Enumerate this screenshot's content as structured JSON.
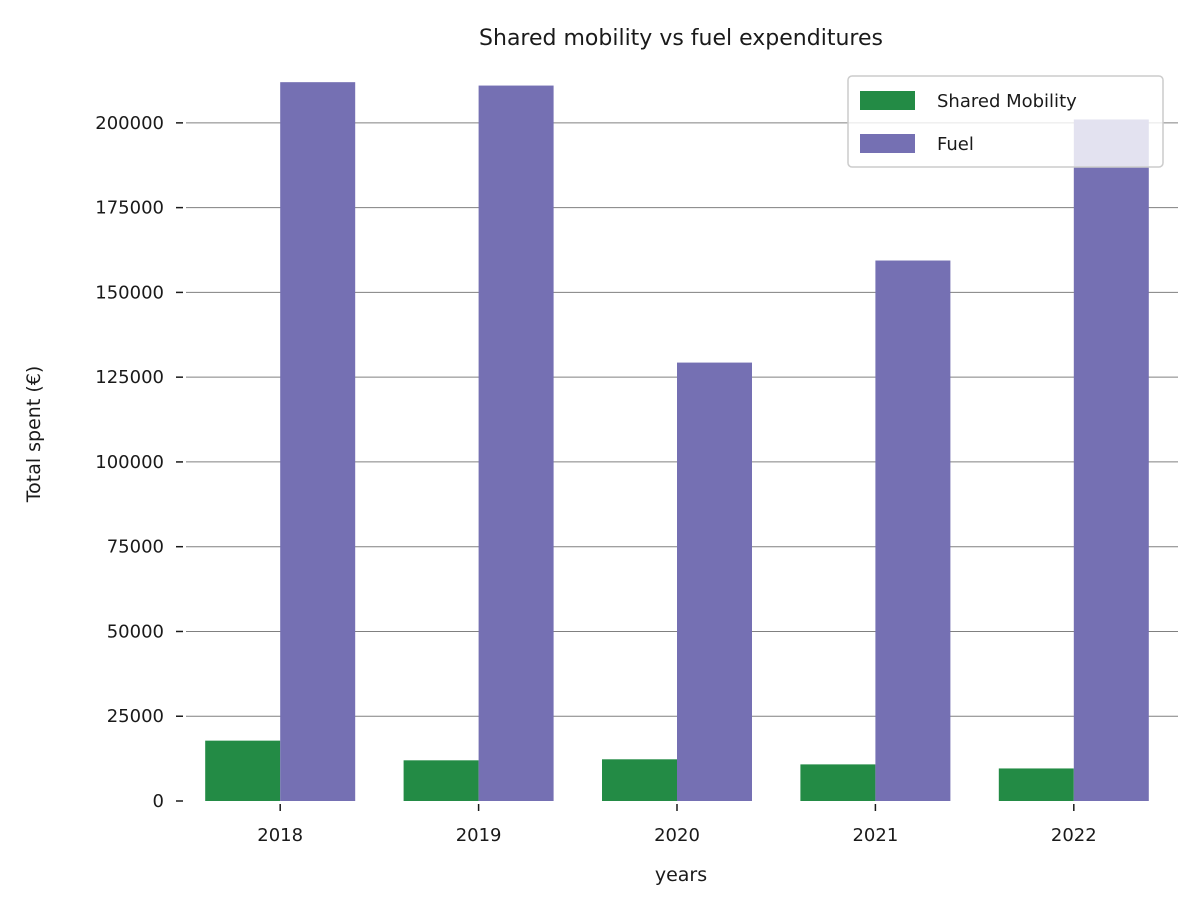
{
  "chart_data": {
    "type": "bar",
    "title": "Shared mobility vs fuel expenditures",
    "xlabel": "years",
    "ylabel": "Total spent (€)",
    "categories": [
      "2018",
      "2019",
      "2020",
      "2021",
      "2022"
    ],
    "series": [
      {
        "name": "Shared Mobility",
        "color": "#238b45",
        "values": [
          17800,
          12000,
          12300,
          10800,
          9600
        ]
      },
      {
        "name": "Fuel",
        "color": "#7570b3",
        "values": [
          212000,
          211000,
          129300,
          159400,
          201000
        ]
      }
    ],
    "ylim": [
      0,
      215000
    ],
    "yticks": [
      0,
      25000,
      50000,
      75000,
      100000,
      125000,
      150000,
      175000,
      200000
    ],
    "ytick_labels": [
      "0",
      "25000",
      "50000",
      "75000",
      "100000",
      "125000",
      "150000",
      "175000",
      "200000"
    ],
    "grid": {
      "y": true,
      "x": false,
      "color": "#808080"
    },
    "legend": "top-right"
  }
}
